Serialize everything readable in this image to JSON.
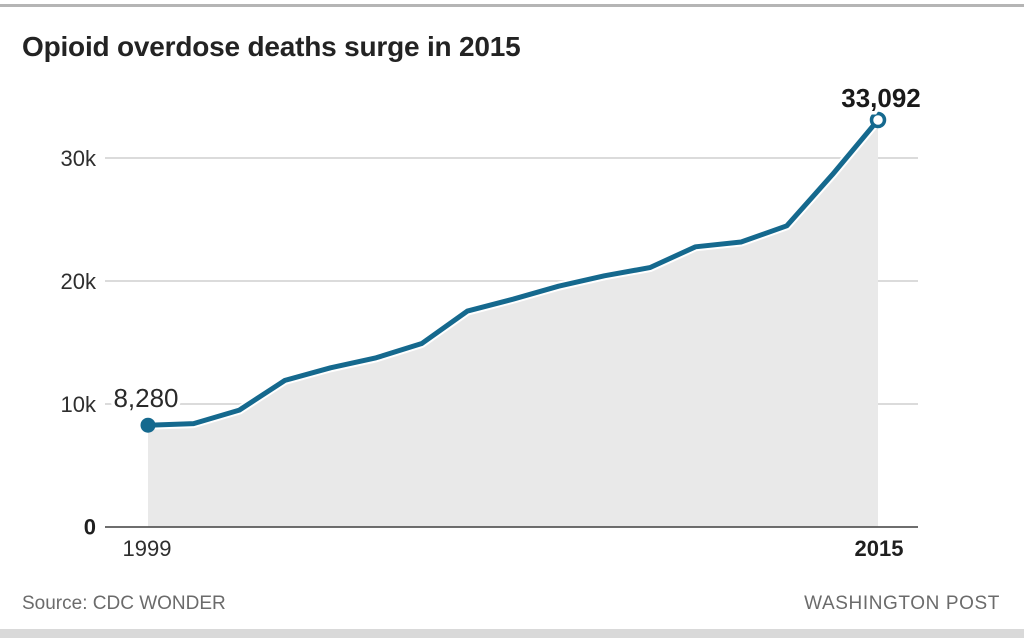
{
  "page": {
    "title": "Opioid overdose deaths surge in 2015",
    "source": "Source: CDC WONDER",
    "attribution": "WASHINGTON POST"
  },
  "chart_data": {
    "type": "area",
    "title": "Opioid overdose deaths surge in 2015",
    "x": [
      1999,
      2000,
      2001,
      2002,
      2003,
      2004,
      2005,
      2006,
      2007,
      2008,
      2009,
      2010,
      2011,
      2012,
      2013,
      2014,
      2015
    ],
    "series": [
      {
        "name": "Opioid overdose deaths",
        "values": [
          8280,
          8410,
          9500,
          11920,
          12940,
          13760,
          14920,
          17550,
          18520,
          19580,
          20420,
          21090,
          22780,
          23170,
          24490,
          28650,
          33092
        ]
      }
    ],
    "ylim": [
      0,
      34000
    ],
    "grid": true,
    "yticks": [
      {
        "value": 0,
        "label": "0"
      },
      {
        "value": 10000,
        "label": "10k"
      },
      {
        "value": 20000,
        "label": "20k"
      },
      {
        "value": 30000,
        "label": "30k"
      }
    ],
    "xtick_labels": {
      "first": "1999",
      "last": "2015"
    },
    "annotations": {
      "start_label": "8,280",
      "end_label": "33,092"
    },
    "colors": {
      "line": "#15698e",
      "fill": "#e9e9e9",
      "grid": "#dbdbdb",
      "axis": "#595959",
      "marker_fill": "#15698e",
      "marker_open_fill": "#ffffff"
    }
  }
}
